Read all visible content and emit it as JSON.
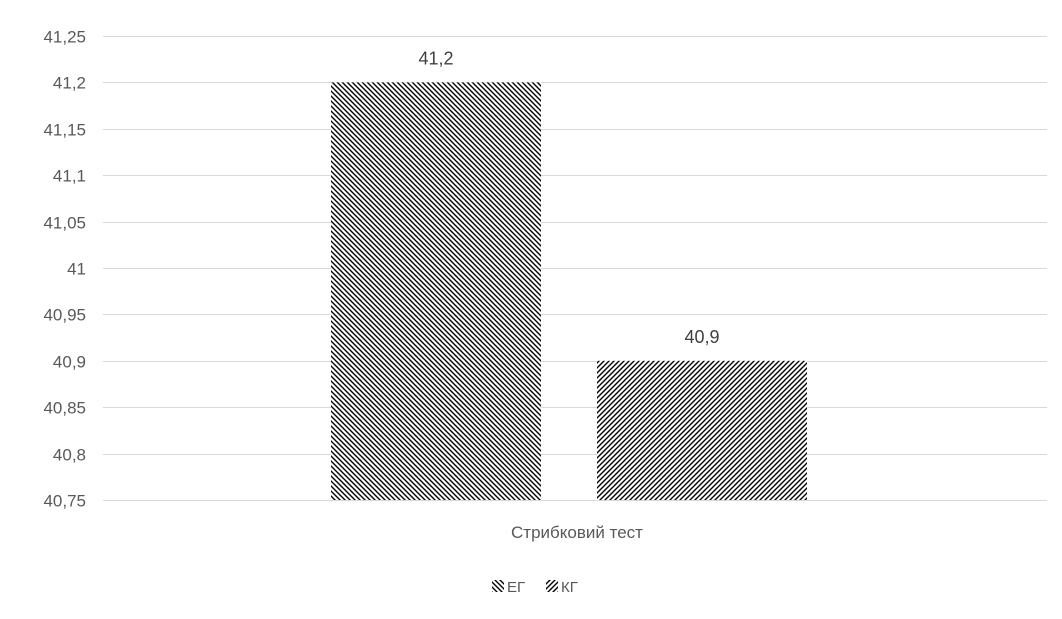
{
  "chart_data": {
    "type": "bar",
    "categories": [
      "Стрибковий тест"
    ],
    "series": [
      {
        "name": "ЕГ",
        "values": [
          41.2
        ],
        "pattern": "dark-upward-diagonal",
        "data_label": "41,2"
      },
      {
        "name": "КГ",
        "values": [
          40.9
        ],
        "pattern": "dark-downward-diagonal",
        "data_label": "40,9"
      }
    ],
    "title": "",
    "xlabel": "",
    "ylabel": "",
    "ylim": [
      40.75,
      41.25
    ],
    "yticks": [
      40.75,
      40.8,
      40.85,
      40.9,
      40.95,
      41,
      41.05,
      41.1,
      41.15,
      41.2,
      41.25
    ],
    "ytick_labels": [
      "40,75",
      "40,8",
      "40,85",
      "40,9",
      "40,95",
      "41",
      "41,05",
      "41,1",
      "41,15",
      "41,2",
      "41,25"
    ],
    "grid": true,
    "legend": "bottom",
    "colors": {
      "gridline": "#d9d9d9",
      "pattern_fg": "#000000",
      "pattern_bg": "#ffffff",
      "text": "#595959",
      "data_label": "#404040"
    }
  }
}
